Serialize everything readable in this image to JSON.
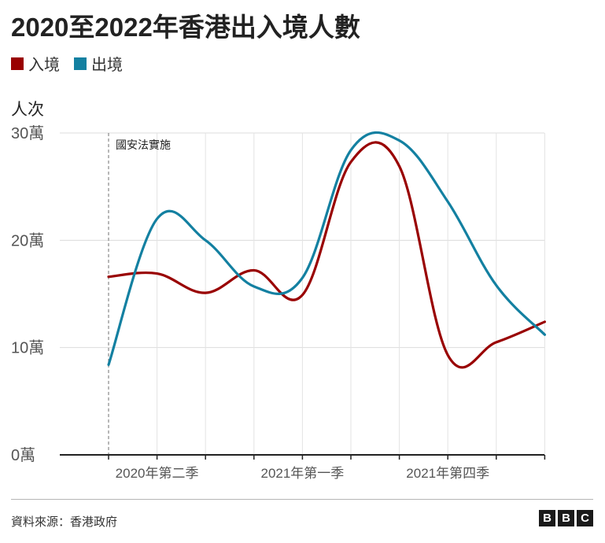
{
  "title": "2020至2022年香港出入境人數",
  "source": "資料來源：香港政府",
  "logo": [
    "B",
    "B",
    "C"
  ],
  "chart_data": {
    "type": "line",
    "x": [
      "2020Q1",
      "2020Q2",
      "2020Q3",
      "2020Q4",
      "2021Q1",
      "2021Q2",
      "2021Q3",
      "2021Q4",
      "2022Q1",
      "2022Q2"
    ],
    "xticks": [
      "2020年第二季",
      "2021年第一季",
      "2021年第四季"
    ],
    "ylabel": "人次",
    "yticks": [
      "0萬",
      "10萬",
      "20萬",
      "30萬"
    ],
    "ylim": [
      0,
      300000
    ],
    "grid": true,
    "legend_position": "top-left",
    "series": [
      {
        "name": "入境",
        "color": "#990000",
        "values": [
          166000,
          169000,
          151000,
          172000,
          149000,
          273000,
          269000,
          93000,
          105000,
          124000
        ]
      },
      {
        "name": "出境",
        "color": "#1380A1",
        "values": [
          84000,
          220000,
          200000,
          157000,
          165000,
          284000,
          293000,
          236000,
          158000,
          112000
        ]
      }
    ],
    "annotation": {
      "text": "國安法實施",
      "x": "2020Q1"
    }
  }
}
